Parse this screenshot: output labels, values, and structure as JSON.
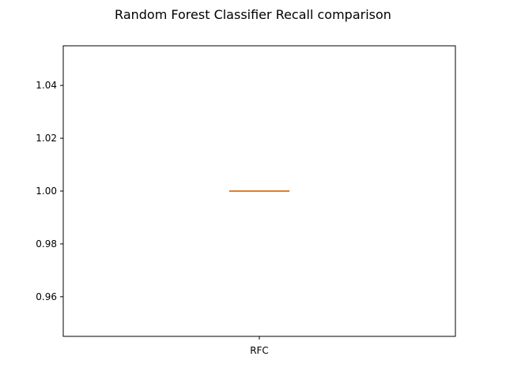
{
  "chart_data": {
    "type": "box",
    "title": "Random Forest Classifier Recall comparison",
    "xlabel": "",
    "ylabel": "",
    "categories": [
      "RFC"
    ],
    "boxes": [
      {
        "category": "RFC",
        "min": 1.0,
        "q1": 1.0,
        "median": 1.0,
        "q3": 1.0,
        "max": 1.0
      }
    ],
    "ylim": [
      0.945,
      1.055
    ],
    "yticks": [
      0.96,
      0.98,
      1.0,
      1.02,
      1.04
    ],
    "ytick_labels": [
      "0.96",
      "0.98",
      "1.00",
      "1.02",
      "1.04"
    ],
    "grid": false,
    "colors": {
      "box": "#000000",
      "median": "#ff7f0e",
      "axes": "#000000"
    }
  }
}
